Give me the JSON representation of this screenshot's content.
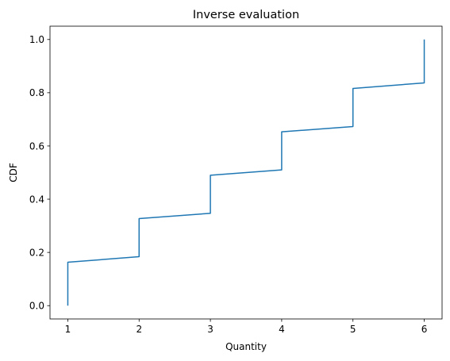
{
  "chart_data": {
    "type": "line",
    "title": "Inverse evaluation",
    "xlabel": "Quantity",
    "ylabel": "CDF",
    "xlim": [
      0.75,
      6.25
    ],
    "ylim": [
      -0.05,
      1.05
    ],
    "xticks": [
      1,
      2,
      3,
      4,
      5,
      6
    ],
    "xtick_labels": [
      "1",
      "2",
      "3",
      "4",
      "5",
      "6"
    ],
    "yticks": [
      0.0,
      0.2,
      0.4,
      0.6,
      0.8,
      1.0
    ],
    "ytick_labels": [
      "0.0",
      "0.2",
      "0.4",
      "0.6",
      "0.8",
      "1.0"
    ],
    "grid": false,
    "series": [
      {
        "color": "#1f77b4",
        "x": [
          1,
          1,
          2,
          2,
          3,
          3,
          4,
          4,
          5,
          5,
          6,
          6
        ],
        "y": [
          0.0,
          0.163,
          0.184,
          0.327,
          0.347,
          0.49,
          0.51,
          0.653,
          0.673,
          0.816,
          0.837,
          1.0
        ]
      }
    ]
  }
}
